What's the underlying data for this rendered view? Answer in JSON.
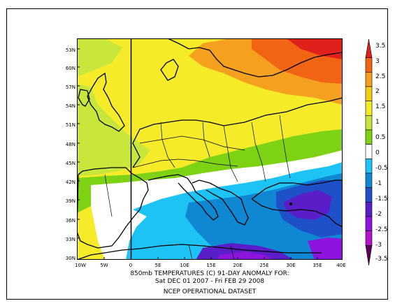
{
  "map": {
    "lat_labels": [
      "53N",
      "60N",
      "57N",
      "54N",
      "51N",
      "48N",
      "45N",
      "42N",
      "39N",
      "36N",
      "33N",
      "30N"
    ],
    "lon_labels": [
      "10W",
      "5W",
      "0",
      "5E",
      "10E",
      "15E",
      "20E",
      "25E",
      "30E",
      "35E",
      "40E"
    ]
  },
  "caption": {
    "line1": "850mb TEMPERATURES (C)   91-DAY ANOMALY FOR:",
    "line2": "Sat DEC 01 2007 - Fri FEB 29 2008",
    "line3": "NCEP OPERATIONAL DATASET"
  },
  "colorbar": {
    "labels": [
      "3.5",
      "3",
      "2.5",
      "2",
      "1.5",
      "1",
      "0.5",
      "0",
      "-0.5",
      "-1",
      "-1.5",
      "-2",
      "-2.5",
      "-3",
      "-3.5"
    ],
    "colors": [
      "#e0201a",
      "#f06414",
      "#f5a01e",
      "#f5cd14",
      "#f5eb28",
      "#c8e63c",
      "#7dd214",
      "#ffffff",
      "#1ec3f5",
      "#0f87d2",
      "#1e50c8",
      "#5a1ec8",
      "#8c14dc",
      "#b414c8",
      "#5a005a"
    ]
  }
}
